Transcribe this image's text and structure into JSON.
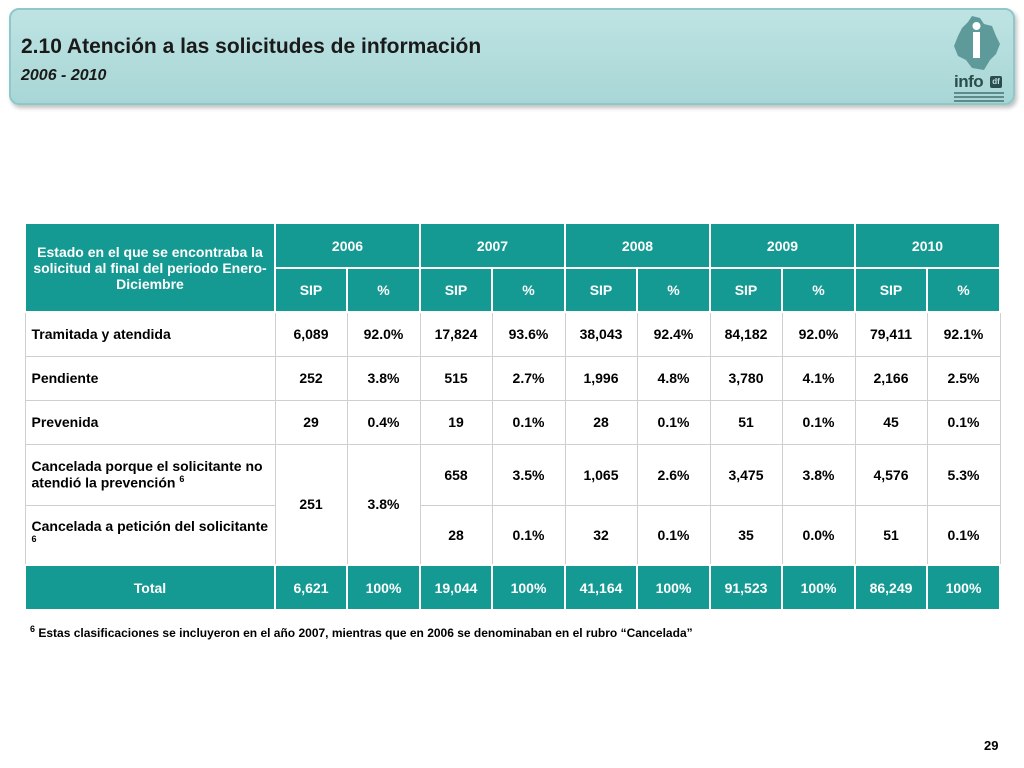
{
  "header": {
    "title": "2.10 Atención a las solicitudes de información",
    "subtitle": "2006 - 2010",
    "logo_text": "info",
    "logo_tag": "df",
    "colors": {
      "banner": "#a8d6d6",
      "table_header": "#159a93"
    }
  },
  "table": {
    "header_label": "Estado en el que se encontraba la solicitud al final del  periodo Enero-Diciembre",
    "years": [
      "2006",
      "2007",
      "2008",
      "2009",
      "2010"
    ],
    "sub_headers": [
      "SIP",
      "%",
      "SIP",
      "%",
      "SIP",
      "%",
      "SIP",
      "%",
      "SIP",
      "%"
    ],
    "rows": [
      {
        "label": "Tramitada y atendida",
        "values": [
          "6,089",
          "92.0%",
          "17,824",
          "93.6%",
          "38,043",
          "92.4%",
          "84,182",
          "92.0%",
          "79,411",
          "92.1%"
        ]
      },
      {
        "label": "Pendiente",
        "values": [
          "252",
          "3.8%",
          "515",
          "2.7%",
          "1,996",
          "4.8%",
          "3,780",
          "4.1%",
          "2,166",
          "2.5%"
        ]
      },
      {
        "label": "Prevenida",
        "values": [
          "29",
          "0.4%",
          "19",
          "0.1%",
          "28",
          "0.1%",
          "51",
          "0.1%",
          "45",
          "0.1%"
        ]
      }
    ],
    "cancel_merged_2006": {
      "sip": "251",
      "pct": "3.8%"
    },
    "cancel_rows": [
      {
        "label": "Cancelada porque el solicitante no atendió la prevención",
        "note": "6",
        "values": [
          "658",
          "3.5%",
          "1,065",
          "2.6%",
          "3,475",
          "3.8%",
          "4,576",
          "5.3%"
        ]
      },
      {
        "label": "Cancelada a petición del solicitante",
        "note": "6",
        "values": [
          "28",
          "0.1%",
          "32",
          "0.1%",
          "35",
          "0.0%",
          "51",
          "0.1%"
        ]
      }
    ],
    "total": {
      "label": "Total",
      "values": [
        "6,621",
        "100%",
        "19,044",
        "100%",
        "41,164",
        "100%",
        "91,523",
        "100%",
        "86,249",
        "100%"
      ]
    }
  },
  "footnote": {
    "mark": "6",
    "text": " Estas clasificaciones se incluyeron en el  año 2007, mientras que en 2006 se denominaban en el rubro “Cancelada”"
  },
  "page_number": "29"
}
